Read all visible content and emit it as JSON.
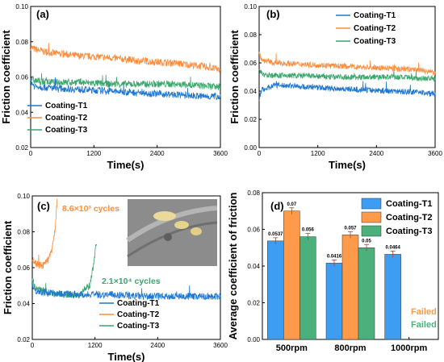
{
  "colors": {
    "T1": "#1f77d4",
    "T2": "#ff8c3a",
    "T3": "#3aa76d",
    "barT1": "#3d9df2",
    "barT2": "#ff9a4a",
    "barT3": "#4cb07d"
  },
  "series_names": [
    "Coating-T1",
    "Coating-T2",
    "Coating-T3"
  ],
  "chart_data": [
    {
      "panel": "(a)",
      "type": "line",
      "xlabel": "Time(s)",
      "ylabel": "Friction coefficient",
      "xlim": [
        0,
        3600
      ],
      "ylim": [
        0.02,
        0.1
      ],
      "xticks": [
        0,
        1200,
        2400,
        3600
      ],
      "yticks": [
        0.02,
        0.04,
        0.06,
        0.08,
        0.1
      ],
      "legend": "bottom-left",
      "series": [
        {
          "name": "Coating-T1",
          "x": [
            0,
            60,
            300,
            900,
            1500,
            2100,
            2700,
            3300,
            3600
          ],
          "y": [
            0.058,
            0.055,
            0.054,
            0.053,
            0.052,
            0.051,
            0.05,
            0.049,
            0.049
          ]
        },
        {
          "name": "Coating-T2",
          "x": [
            0,
            60,
            300,
            900,
            1500,
            2100,
            2700,
            3300,
            3600
          ],
          "y": [
            0.077,
            0.076,
            0.074,
            0.072,
            0.071,
            0.069,
            0.068,
            0.066,
            0.064
          ]
        },
        {
          "name": "Coating-T3",
          "x": [
            0,
            60,
            300,
            900,
            1500,
            2100,
            2700,
            3300,
            3600
          ],
          "y": [
            0.06,
            0.058,
            0.057,
            0.057,
            0.056,
            0.056,
            0.056,
            0.055,
            0.054
          ]
        }
      ]
    },
    {
      "panel": "(b)",
      "type": "line",
      "xlabel": "Time(s)",
      "ylabel": "Friction coefficient",
      "xlim": [
        0,
        3600
      ],
      "ylim": [
        0.0,
        0.1
      ],
      "xticks": [
        0,
        1200,
        2400,
        3600
      ],
      "yticks": [
        0.0,
        0.02,
        0.04,
        0.06,
        0.08,
        0.1
      ],
      "legend": "top-right",
      "series": [
        {
          "name": "Coating-T1",
          "x": [
            0,
            60,
            300,
            600,
            900,
            1500,
            2100,
            2700,
            3300,
            3600
          ],
          "y": [
            0.035,
            0.041,
            0.044,
            0.044,
            0.043,
            0.042,
            0.041,
            0.04,
            0.039,
            0.038
          ]
        },
        {
          "name": "Coating-T2",
          "x": [
            0,
            60,
            300,
            900,
            1500,
            2100,
            2700,
            3300,
            3600
          ],
          "y": [
            0.067,
            0.062,
            0.06,
            0.059,
            0.058,
            0.057,
            0.056,
            0.055,
            0.053
          ]
        },
        {
          "name": "Coating-T3",
          "x": [
            0,
            60,
            300,
            900,
            1500,
            2100,
            2700,
            3300,
            3600
          ],
          "y": [
            0.055,
            0.052,
            0.051,
            0.051,
            0.05,
            0.05,
            0.05,
            0.049,
            0.049
          ]
        }
      ]
    },
    {
      "panel": "(c)",
      "type": "line",
      "xlabel": "Time(s)",
      "ylabel": "Friction coefficient",
      "xlim": [
        0,
        3600
      ],
      "ylim": [
        0.02,
        0.1
      ],
      "xticks": [
        0,
        1200,
        2400,
        3600
      ],
      "yticks": [
        0.02,
        0.04,
        0.06,
        0.08,
        0.1
      ],
      "legend": "bottom-right",
      "annotations": [
        "8.6×10³ cycles",
        "2.1×10⁴ cycles"
      ],
      "series": [
        {
          "name": "Coating-T1",
          "x": [
            0,
            60,
            300,
            900,
            1500,
            2100,
            2700,
            3300,
            3600
          ],
          "y": [
            0.05,
            0.047,
            0.046,
            0.045,
            0.045,
            0.044,
            0.044,
            0.044,
            0.044
          ]
        },
        {
          "name": "Coating-T2",
          "x": [
            0,
            60,
            200,
            300,
            380,
            430,
            470,
            480
          ],
          "y": [
            0.065,
            0.062,
            0.061,
            0.064,
            0.07,
            0.08,
            0.095,
            0.1
          ]
        },
        {
          "name": "Coating-T3",
          "x": [
            0,
            60,
            300,
            600,
            900,
            1000,
            1100,
            1150,
            1200,
            1230
          ],
          "y": [
            0.052,
            0.048,
            0.046,
            0.045,
            0.045,
            0.048,
            0.05,
            0.058,
            0.068,
            0.075
          ]
        }
      ]
    },
    {
      "panel": "(d)",
      "type": "bar",
      "xlabel": "",
      "ylabel": "Average coefficient of friction",
      "ylim": [
        0.0,
        0.08
      ],
      "yticks": [
        0.0,
        0.02,
        0.04,
        0.06,
        0.08
      ],
      "categories": [
        "500rpm",
        "800rpm",
        "1000rpm"
      ],
      "legend": "top-right",
      "series": [
        {
          "name": "Coating-T1",
          "values": [
            0.0537,
            0.0416,
            0.0464
          ],
          "labels": [
            "0.0537",
            "0.0416",
            "0.0464"
          ]
        },
        {
          "name": "Coating-T2",
          "values": [
            0.07,
            0.057,
            null
          ],
          "labels": [
            "0.07",
            "0.057",
            ""
          ]
        },
        {
          "name": "Coating-T3",
          "values": [
            0.056,
            0.05,
            null
          ],
          "labels": [
            "0.056",
            "0.05",
            ""
          ]
        }
      ],
      "failed_labels": [
        "Failed",
        "Failed"
      ]
    }
  ]
}
